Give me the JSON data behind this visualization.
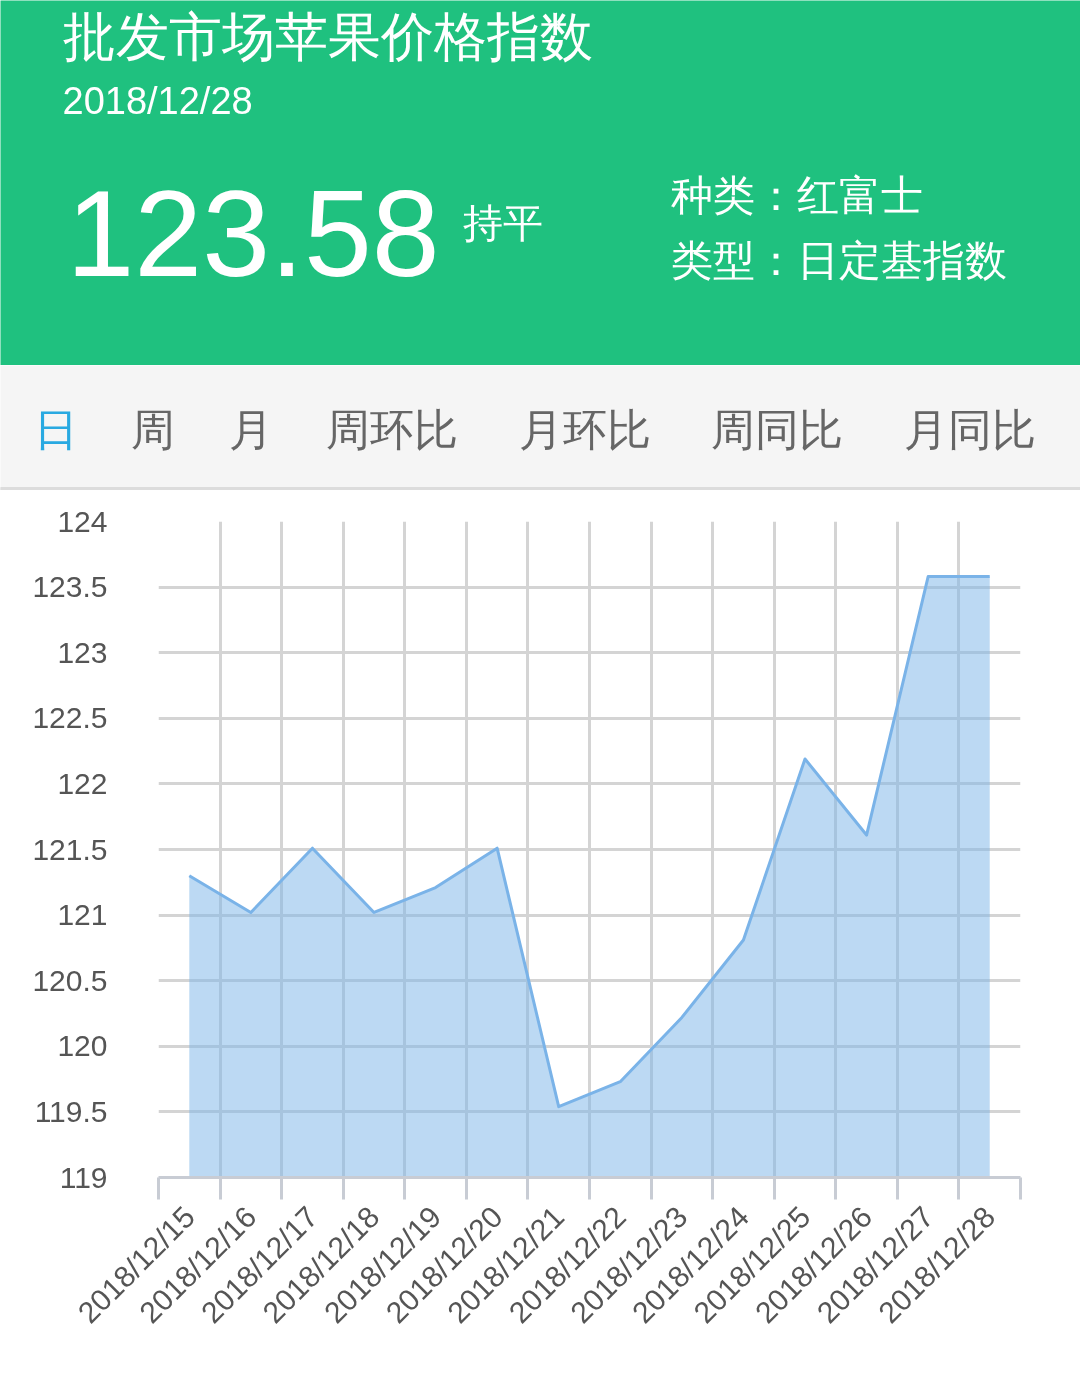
{
  "chart_data": {
    "type": "area",
    "title": "批发市场苹果价格指数",
    "subtitle": "2018/12/28",
    "annotations": [
      "123.58",
      "持平",
      "种类：红富士",
      "类型：日定基指数",
      "日",
      "周",
      "月",
      "周环比",
      "月环比",
      "周同比",
      "月同比"
    ],
    "categories": [
      "2018/12/15",
      "2018/12/16",
      "2018/12/17",
      "2018/12/18",
      "2018/12/19",
      "2018/12/20",
      "2018/12/21",
      "2018/12/22",
      "2018/12/23",
      "2018/12/24",
      "2018/12/25",
      "2018/12/26",
      "2018/12/27",
      "2018/12/28"
    ],
    "series": [
      {
        "color": "#7ab3e8",
        "values": [
          121.3,
          121.02,
          121.51,
          121.02,
          121.21,
          121.51,
          119.54,
          119.73,
          120.22,
          120.81,
          122.19,
          121.61,
          123.58,
          123.58
        ]
      }
    ],
    "ylim": [
      119,
      124
    ],
    "yticks": [
      119,
      119.5,
      120,
      120.5,
      121,
      121.5,
      122,
      122.5,
      123,
      123.5,
      124
    ],
    "grid": true
  }
}
